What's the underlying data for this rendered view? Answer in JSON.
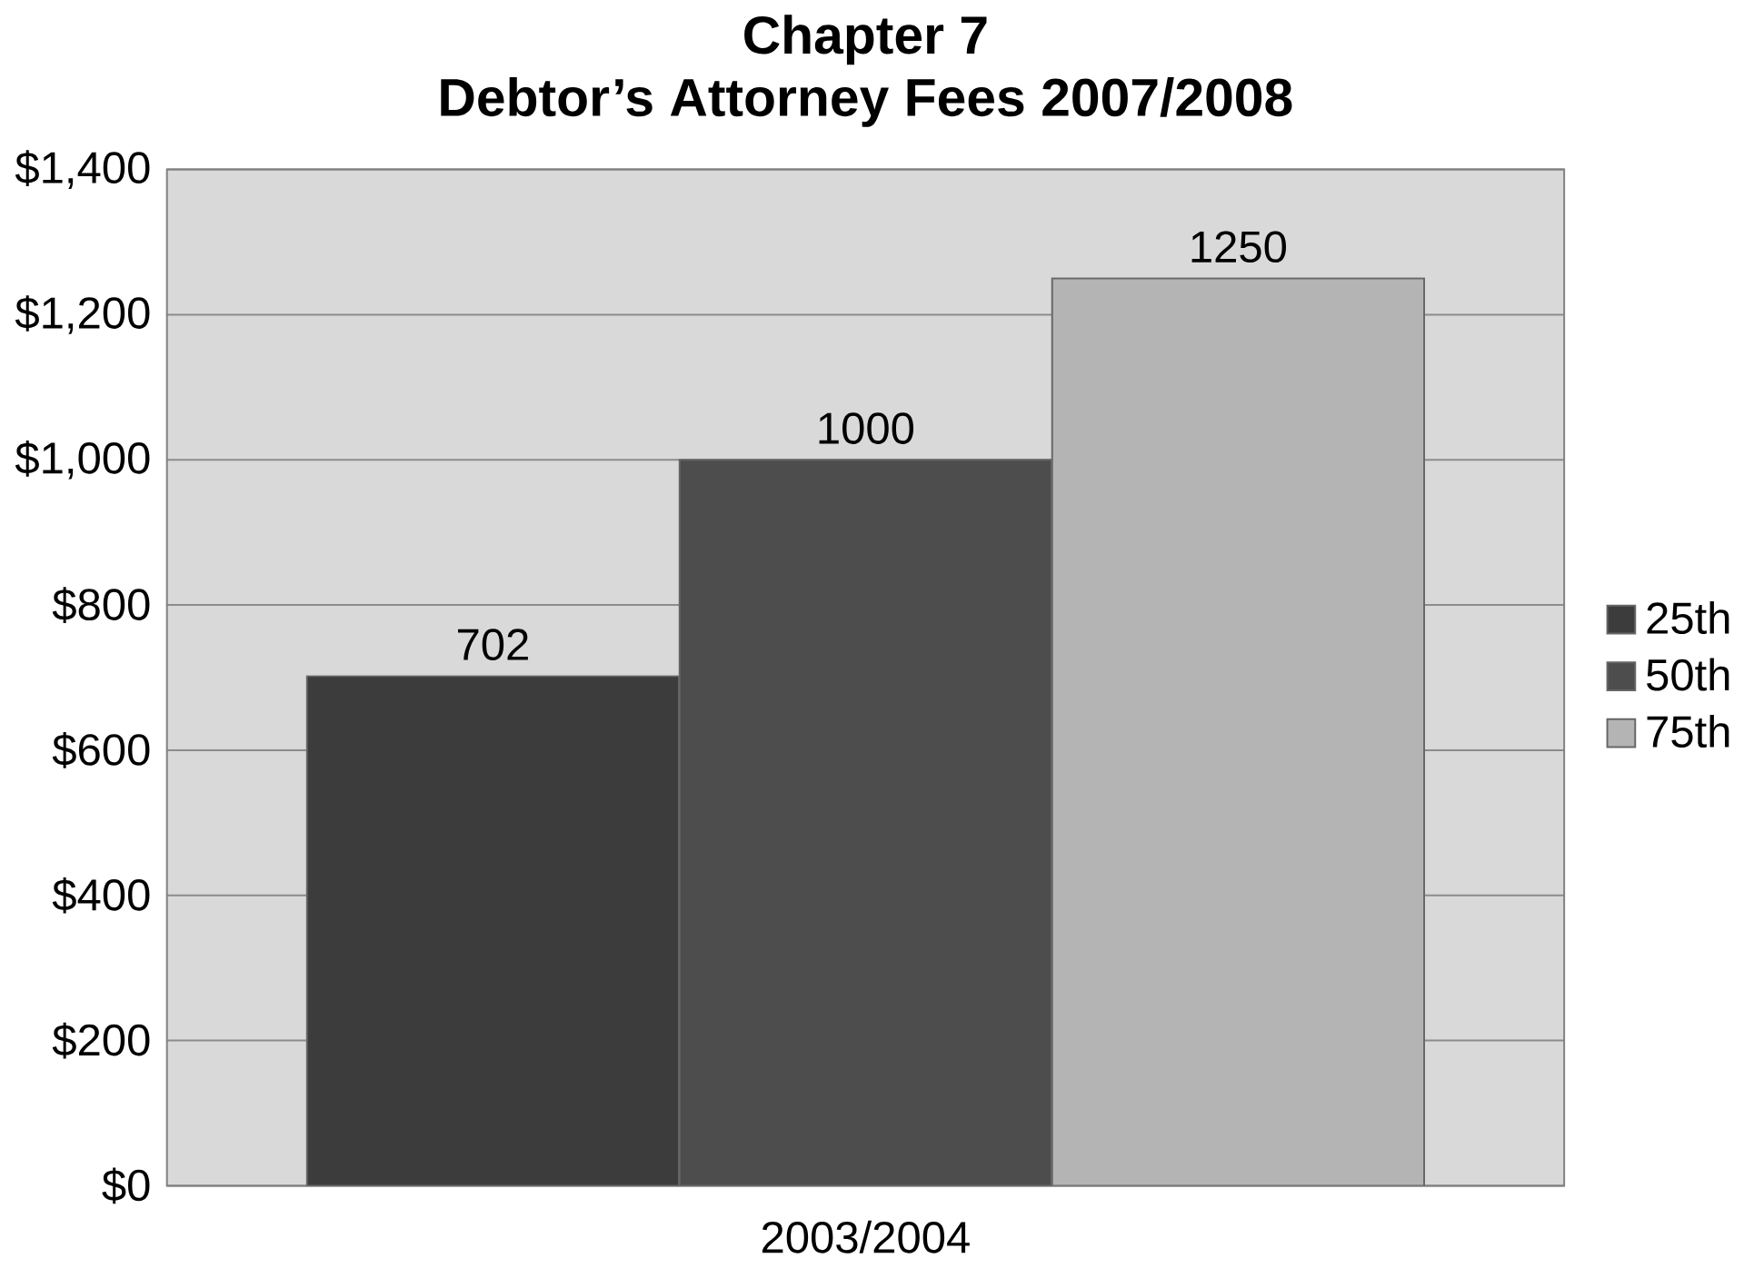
{
  "chart_data": {
    "type": "bar",
    "title": "Chapter 7\nDebtor’s Attorney Fees 2007/2008",
    "categories": [
      "2003/2004"
    ],
    "series": [
      {
        "name": "25th",
        "color": "#3c3c3c",
        "values": [
          702
        ]
      },
      {
        "name": "50th",
        "color": "#4d4d4d",
        "values": [
          1000
        ]
      },
      {
        "name": "75th",
        "color": "#b4b4b4",
        "values": [
          1250
        ]
      }
    ],
    "ylim": [
      0,
      1400
    ],
    "yticks": [
      {
        "value": 0,
        "label": "$0"
      },
      {
        "value": 200,
        "label": "$200"
      },
      {
        "value": 400,
        "label": "$400"
      },
      {
        "value": 600,
        "label": "$600"
      },
      {
        "value": 800,
        "label": "$800"
      },
      {
        "value": 1000,
        "label": "$1,000"
      },
      {
        "value": 1200,
        "label": "$1,200"
      },
      {
        "value": 1400,
        "label": "$1,400"
      }
    ],
    "grid": "y",
    "legend": "right",
    "data_labels": true
  }
}
